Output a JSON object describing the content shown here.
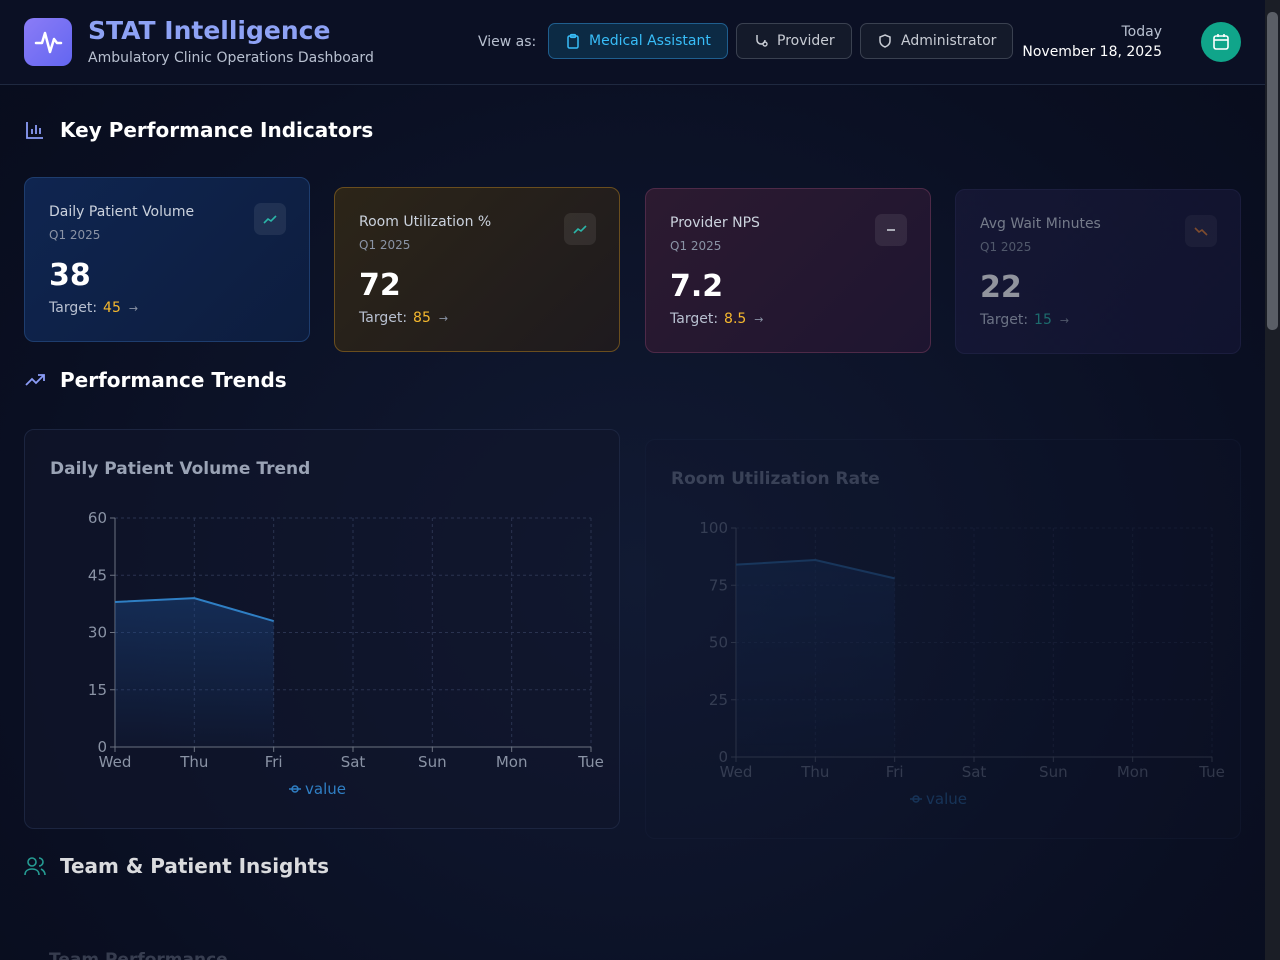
{
  "header": {
    "title": "STAT Intelligence",
    "subtitle": "Ambulatory Clinic Operations Dashboard",
    "view_as_label": "View as:",
    "roles": [
      "Medical Assistant",
      "Provider",
      "Administrator"
    ],
    "date_label": "Today",
    "date": "November 18, 2025"
  },
  "sections": [
    "Key Performance Indicators",
    "Performance Trends",
    "Team & Patient Insights"
  ],
  "kpis": [
    {
      "label": "Daily Patient Volume",
      "period": "Q1 2025",
      "value": 38,
      "target_label": "Target:",
      "target": 45
    },
    {
      "label": "Room Utilization %",
      "period": "Q1 2025",
      "value": 72,
      "target_label": "Target:",
      "target": 85
    },
    {
      "label": "Provider NPS",
      "period": "Q1 2025",
      "value": 7.2,
      "target_label": "Target:",
      "target": 8.5
    },
    {
      "label": "Avg Wait Minutes",
      "period": "Q1 2025",
      "value": 22,
      "target_label": "Target:",
      "target": 15
    }
  ],
  "chart_data": [
    {
      "type": "line",
      "title": "Daily Patient Volume Trend",
      "categories": [
        "Wed",
        "Thu",
        "Fri",
        "Sat",
        "Sun",
        "Mon",
        "Tue"
      ],
      "series": [
        {
          "name": "value",
          "color": "#2f7fc4",
          "values": [
            38,
            39,
            33,
            null,
            null,
            null,
            null
          ]
        }
      ],
      "ylim": [
        0,
        60
      ],
      "yticks": [
        0,
        15,
        30,
        45,
        60
      ],
      "grid": true
    },
    {
      "type": "line",
      "title": "Room Utilization Rate",
      "categories": [
        "Wed",
        "Thu",
        "Fri",
        "Sat",
        "Sun",
        "Mon",
        "Tue"
      ],
      "series": [
        {
          "name": "value",
          "color": "#2f7fc4",
          "values": [
            84,
            86,
            78,
            null,
            null,
            null,
            null
          ]
        }
      ],
      "ylim": [
        0,
        100
      ],
      "yticks": [
        0,
        25,
        50,
        75,
        100
      ],
      "grid": true
    }
  ],
  "partial_cards": [
    "Team Performance"
  ]
}
